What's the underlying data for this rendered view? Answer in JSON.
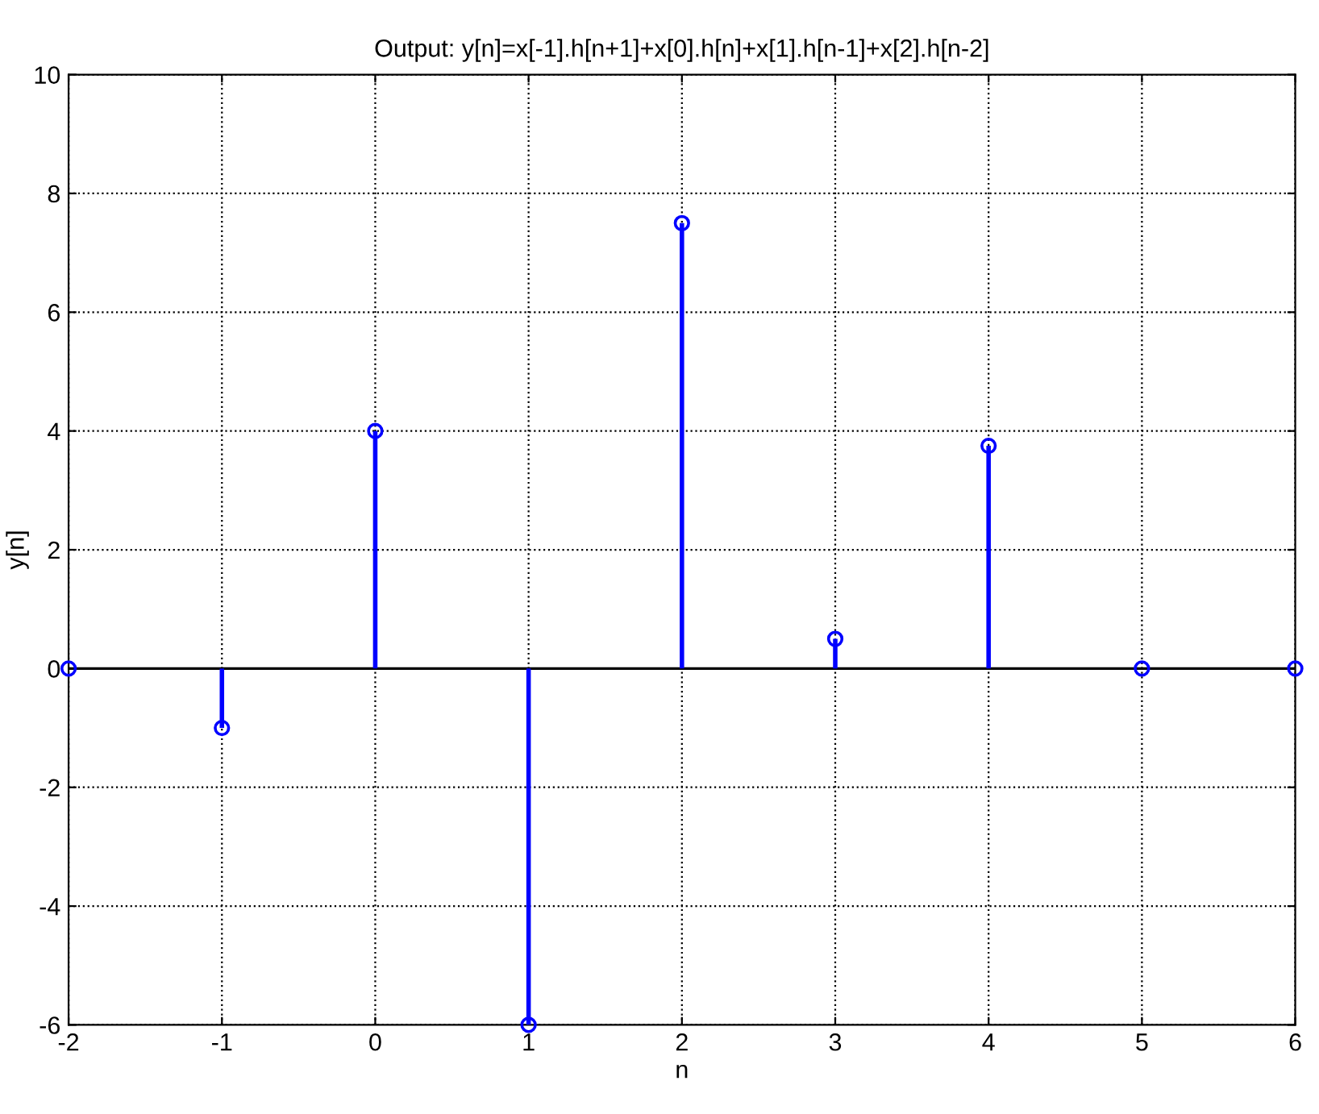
{
  "chart_data": {
    "type": "lollipop",
    "title": "Output: y[n]=x[-1].h[n+1]+x[0].h[n]+x[1].h[n-1]+x[2].h[n-2]",
    "xlabel": "n",
    "ylabel": "y[n]",
    "x": [
      -2,
      -1,
      0,
      1,
      2,
      3,
      4,
      5,
      6
    ],
    "series": [
      {
        "color": "#0000ff",
        "values": [
          0,
          -1,
          4,
          -6,
          7.5,
          0.5,
          3.75,
          0,
          0
        ]
      }
    ],
    "xlim": [
      -2,
      6
    ],
    "ylim": [
      -6,
      10
    ],
    "xticks": [
      -2,
      -1,
      0,
      1,
      2,
      3,
      4,
      5,
      6
    ],
    "yticks": [
      -6,
      -4,
      -2,
      0,
      2,
      4,
      6,
      8,
      10
    ],
    "grid": true,
    "marker": "circle",
    "line_style": "solid"
  }
}
